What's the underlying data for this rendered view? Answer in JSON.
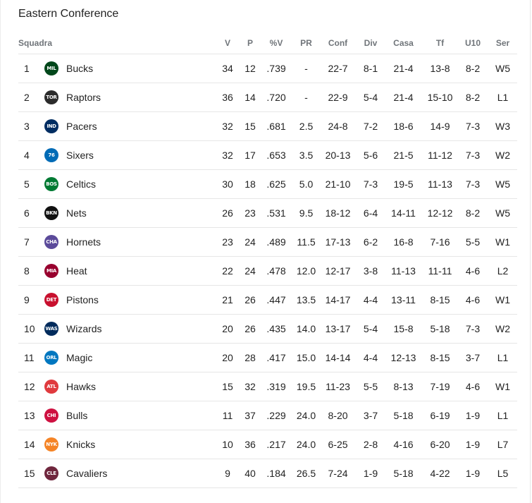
{
  "title": "Eastern Conference",
  "headers": {
    "team": "Squadra",
    "v": "V",
    "p": "P",
    "pct": "%V",
    "pr": "PR",
    "conf": "Conf",
    "div": "Div",
    "casa": "Casa",
    "tf": "Tf",
    "u10": "U10",
    "ser": "Ser"
  },
  "teams": [
    {
      "rank": "1",
      "name": "Bucks",
      "logo": "bucks-logo-icon",
      "color": "#00471b",
      "abbr": "MIL",
      "v": "34",
      "p": "12",
      "pct": ".739",
      "pr": "-",
      "conf": "22-7",
      "div": "8-1",
      "casa": "21-4",
      "tf": "13-8",
      "u10": "8-2",
      "ser": "W5"
    },
    {
      "rank": "2",
      "name": "Raptors",
      "logo": "raptors-logo-icon",
      "color": "#2b2b2b",
      "abbr": "TOR",
      "v": "36",
      "p": "14",
      "pct": ".720",
      "pr": "-",
      "conf": "22-9",
      "div": "5-4",
      "casa": "21-4",
      "tf": "15-10",
      "u10": "8-2",
      "ser": "L1"
    },
    {
      "rank": "3",
      "name": "Pacers",
      "logo": "pacers-logo-icon",
      "color": "#002d62",
      "abbr": "IND",
      "v": "32",
      "p": "15",
      "pct": ".681",
      "pr": "2.5",
      "conf": "24-8",
      "div": "7-2",
      "casa": "18-6",
      "tf": "14-9",
      "u10": "7-3",
      "ser": "W3"
    },
    {
      "rank": "4",
      "name": "Sixers",
      "logo": "sixers-logo-icon",
      "color": "#006bb6",
      "abbr": "76",
      "v": "32",
      "p": "17",
      "pct": ".653",
      "pr": "3.5",
      "conf": "20-13",
      "div": "5-6",
      "casa": "21-5",
      "tf": "11-12",
      "u10": "7-3",
      "ser": "W2"
    },
    {
      "rank": "5",
      "name": "Celtics",
      "logo": "celtics-logo-icon",
      "color": "#007a33",
      "abbr": "BOS",
      "v": "30",
      "p": "18",
      "pct": ".625",
      "pr": "5.0",
      "conf": "21-10",
      "div": "7-3",
      "casa": "19-5",
      "tf": "11-13",
      "u10": "7-3",
      "ser": "W5"
    },
    {
      "rank": "6",
      "name": "Nets",
      "logo": "nets-logo-icon",
      "color": "#111111",
      "abbr": "BKN",
      "v": "26",
      "p": "23",
      "pct": ".531",
      "pr": "9.5",
      "conf": "18-12",
      "div": "6-4",
      "casa": "14-11",
      "tf": "12-12",
      "u10": "8-2",
      "ser": "W5"
    },
    {
      "rank": "7",
      "name": "Hornets",
      "logo": "hornets-logo-icon",
      "color": "#5b4a9a",
      "abbr": "CHA",
      "v": "23",
      "p": "24",
      "pct": ".489",
      "pr": "11.5",
      "conf": "17-13",
      "div": "6-2",
      "casa": "16-8",
      "tf": "7-16",
      "u10": "5-5",
      "ser": "W1"
    },
    {
      "rank": "8",
      "name": "Heat",
      "logo": "heat-logo-icon",
      "color": "#98002e",
      "abbr": "MIA",
      "v": "22",
      "p": "24",
      "pct": ".478",
      "pr": "12.0",
      "conf": "12-17",
      "div": "3-8",
      "casa": "11-13",
      "tf": "11-11",
      "u10": "4-6",
      "ser": "L2"
    },
    {
      "rank": "9",
      "name": "Pistons",
      "logo": "pistons-logo-icon",
      "color": "#c8102e",
      "abbr": "DET",
      "v": "21",
      "p": "26",
      "pct": ".447",
      "pr": "13.5",
      "conf": "14-17",
      "div": "4-4",
      "casa": "13-11",
      "tf": "8-15",
      "u10": "4-6",
      "ser": "W1"
    },
    {
      "rank": "10",
      "name": "Wizards",
      "logo": "wizards-logo-icon",
      "color": "#002b5c",
      "abbr": "WAS",
      "v": "20",
      "p": "26",
      "pct": ".435",
      "pr": "14.0",
      "conf": "13-17",
      "div": "5-4",
      "casa": "15-8",
      "tf": "5-18",
      "u10": "7-3",
      "ser": "W2"
    },
    {
      "rank": "11",
      "name": "Magic",
      "logo": "magic-logo-icon",
      "color": "#0077c0",
      "abbr": "ORL",
      "v": "20",
      "p": "28",
      "pct": ".417",
      "pr": "15.0",
      "conf": "14-14",
      "div": "4-4",
      "casa": "12-13",
      "tf": "8-15",
      "u10": "3-7",
      "ser": "L1"
    },
    {
      "rank": "12",
      "name": "Hawks",
      "logo": "hawks-logo-icon",
      "color": "#e03a3e",
      "abbr": "ATL",
      "v": "15",
      "p": "32",
      "pct": ".319",
      "pr": "19.5",
      "conf": "11-23",
      "div": "5-5",
      "casa": "8-13",
      "tf": "7-19",
      "u10": "4-6",
      "ser": "W1"
    },
    {
      "rank": "13",
      "name": "Bulls",
      "logo": "bulls-logo-icon",
      "color": "#ce1141",
      "abbr": "CHI",
      "v": "11",
      "p": "37",
      "pct": ".229",
      "pr": "24.0",
      "conf": "8-20",
      "div": "3-7",
      "casa": "5-18",
      "tf": "6-19",
      "u10": "1-9",
      "ser": "L1"
    },
    {
      "rank": "14",
      "name": "Knicks",
      "logo": "knicks-logo-icon",
      "color": "#f58426",
      "abbr": "NYK",
      "v": "10",
      "p": "36",
      "pct": ".217",
      "pr": "24.0",
      "conf": "6-25",
      "div": "2-8",
      "casa": "4-16",
      "tf": "6-20",
      "u10": "1-9",
      "ser": "L7"
    },
    {
      "rank": "15",
      "name": "Cavaliers",
      "logo": "cavaliers-logo-icon",
      "color": "#6f263d",
      "abbr": "CLE",
      "v": "9",
      "p": "40",
      "pct": ".184",
      "pr": "26.5",
      "conf": "7-24",
      "div": "1-9",
      "casa": "5-18",
      "tf": "4-22",
      "u10": "1-9",
      "ser": "L5"
    }
  ]
}
